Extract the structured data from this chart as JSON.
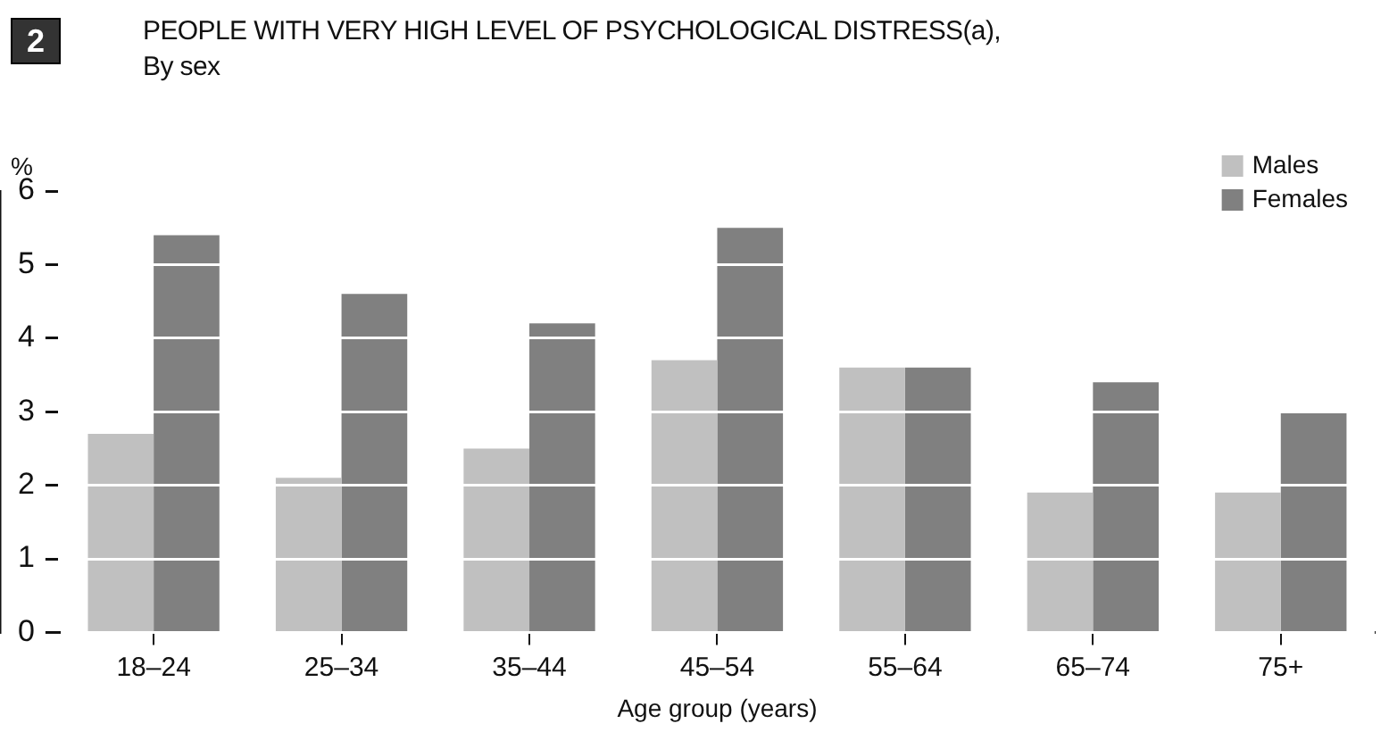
{
  "chart_data": {
    "type": "bar",
    "title": "PEOPLE WITH VERY HIGH LEVEL OF PSYCHOLOGICAL DISTRESS(a),",
    "subtitle": "By sex",
    "annotations": [
      "2"
    ],
    "xlabel": "Age group (years)",
    "ylabel": "%",
    "categories": [
      "18–24",
      "25–34",
      "35–44",
      "45–54",
      "55–64",
      "65–74",
      "75+"
    ],
    "series": [
      {
        "name": "Males",
        "color": "#c0c0c0",
        "values": [
          2.7,
          2.1,
          2.5,
          3.7,
          3.6,
          1.9,
          1.9
        ]
      },
      {
        "name": "Females",
        "color": "#808080",
        "values": [
          5.4,
          4.6,
          4.2,
          5.5,
          3.6,
          3.4,
          3.0
        ]
      }
    ],
    "ylim": [
      0,
      6
    ],
    "yticks": [
      0,
      1,
      2,
      3,
      4,
      5,
      6
    ],
    "grid": "y",
    "legend": "top right"
  }
}
